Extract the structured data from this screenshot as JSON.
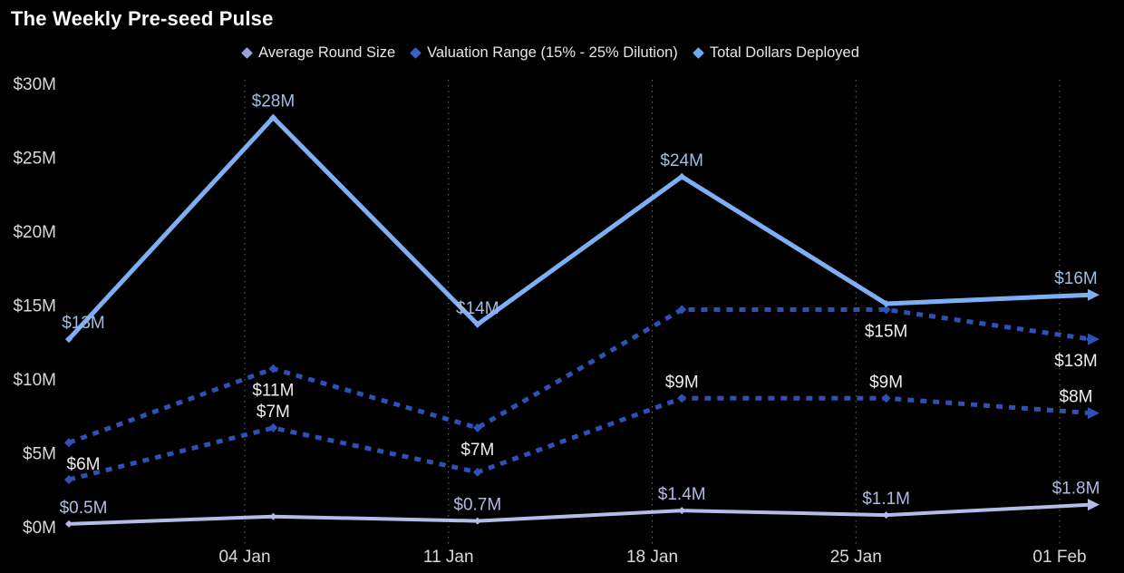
{
  "title": "The Weekly Pre-seed Pulse",
  "chart_data": {
    "type": "line",
    "title": "The Weekly Pre-seed Pulse",
    "legend_position": "top",
    "grid": "vertical-dotted",
    "background": "#000000",
    "x_tick_labels": [
      "04 Jan",
      "11 Jan",
      "18 Jan",
      "25 Jan",
      "01 Feb"
    ],
    "y_tick_labels": [
      "$0M",
      "$5M",
      "$10M",
      "$15M",
      "$20M",
      "$25M",
      "$30M"
    ],
    "y_tick_values": [
      0,
      5,
      10,
      15,
      20,
      25,
      30
    ],
    "ylim": [
      0,
      30
    ],
    "num_points": 6,
    "legend": [
      {
        "label": "Average Round Size",
        "color": "#9aa1dc"
      },
      {
        "label": "Valuation Range (15% - 25% Dilution)",
        "color": "#3f5dc9"
      },
      {
        "label": "Total Dollars Deployed",
        "color": "#6fa9f2"
      }
    ],
    "series": [
      {
        "name": "Total Dollars Deployed",
        "style": "solid",
        "color": "#7eaef3",
        "label_color": "#a2bce0",
        "label_side": "above",
        "width": 5,
        "values": [
          13,
          28,
          14,
          24,
          15.4,
          16
        ],
        "point_labels": [
          "$13M",
          "$28M",
          "$14M",
          "$24M",
          "",
          "$16M"
        ]
      },
      {
        "name": "Valuation Range upper bound (15% dilution)",
        "style": "dotted",
        "color": "#2f51b5",
        "label_color": "#ededed",
        "label_side": "below",
        "width": 5,
        "values": [
          6,
          11,
          7,
          15,
          15,
          13
        ],
        "point_labels": [
          "$6M",
          "$11M",
          "$7M",
          "",
          "$15M",
          "$13M"
        ]
      },
      {
        "name": "Valuation Range lower bound (25% dilution)",
        "style": "dotted",
        "color": "#2f51b5",
        "label_color": "#ededed",
        "label_side": "above",
        "width": 5,
        "values": [
          3.5,
          7,
          4,
          9,
          9,
          8
        ],
        "point_labels": [
          "",
          "$7M",
          "",
          "$9M",
          "$9M",
          "$8M"
        ]
      },
      {
        "name": "Average Round Size",
        "style": "solid",
        "color": "#b6bbe7",
        "label_color": "#b3b8e3",
        "label_side": "above",
        "width": 4,
        "values": [
          0.5,
          1,
          0.7,
          1.4,
          1.1,
          1.8
        ],
        "point_labels": [
          "$0.5M",
          "",
          "$0.7M",
          "$1.4M",
          "$1.1M",
          "$1.8M"
        ]
      }
    ]
  }
}
